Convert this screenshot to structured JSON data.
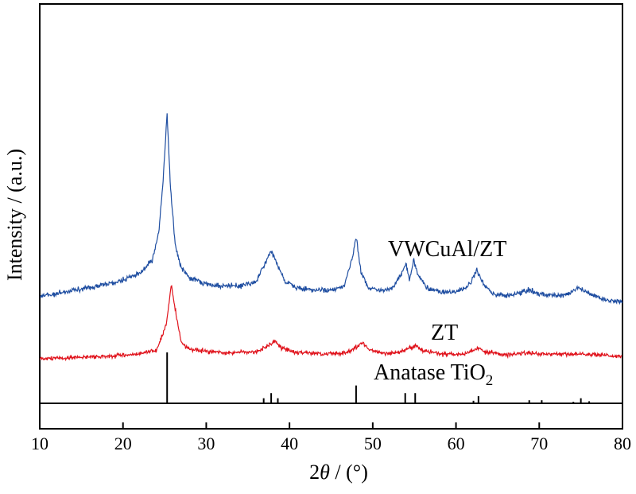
{
  "chart_data": {
    "type": "line",
    "xlabel_prefix": "2",
    "xlabel_symbol": "θ",
    "xlabel_suffix": " / (°)",
    "ylabel": "Intensity / (a.u.)",
    "xlim": [
      10,
      80
    ],
    "x_ticks": [
      "10",
      "20",
      "30",
      "40",
      "50",
      "60",
      "70",
      "80"
    ],
    "y_ticks": "none",
    "grid": false,
    "series": [
      {
        "name": "VWCuAl/ZT",
        "color": "#1f4ea1",
        "points": [
          [
            10,
            0.08
          ],
          [
            12,
            0.09
          ],
          [
            14,
            0.11
          ],
          [
            16,
            0.12
          ],
          [
            18,
            0.14
          ],
          [
            20,
            0.16
          ],
          [
            22,
            0.19
          ],
          [
            23.5,
            0.26
          ],
          [
            24.3,
            0.4
          ],
          [
            24.8,
            0.65
          ],
          [
            25.3,
            1.0
          ],
          [
            25.7,
            0.62
          ],
          [
            26.3,
            0.33
          ],
          [
            27,
            0.22
          ],
          [
            28,
            0.17
          ],
          [
            30,
            0.14
          ],
          [
            32,
            0.13
          ],
          [
            34,
            0.13
          ],
          [
            36,
            0.15
          ],
          [
            37,
            0.24
          ],
          [
            37.8,
            0.31
          ],
          [
            38.5,
            0.24
          ],
          [
            39.5,
            0.15
          ],
          [
            41,
            0.12
          ],
          [
            43,
            0.11
          ],
          [
            45,
            0.11
          ],
          [
            46.5,
            0.13
          ],
          [
            47.5,
            0.26
          ],
          [
            48.0,
            0.38
          ],
          [
            48.6,
            0.2
          ],
          [
            49.5,
            0.12
          ],
          [
            51,
            0.11
          ],
          [
            52.5,
            0.12
          ],
          [
            53.5,
            0.2
          ],
          [
            54.0,
            0.24
          ],
          [
            54.4,
            0.16
          ],
          [
            54.9,
            0.26
          ],
          [
            55.5,
            0.18
          ],
          [
            56.5,
            0.12
          ],
          [
            58,
            0.1
          ],
          [
            60,
            0.1
          ],
          [
            61.5,
            0.13
          ],
          [
            62.5,
            0.21
          ],
          [
            63.3,
            0.14
          ],
          [
            64.5,
            0.09
          ],
          [
            66,
            0.08
          ],
          [
            67.5,
            0.09
          ],
          [
            68.8,
            0.11
          ],
          [
            70,
            0.09
          ],
          [
            72,
            0.08
          ],
          [
            73.5,
            0.09
          ],
          [
            74.8,
            0.12
          ],
          [
            76,
            0.09
          ],
          [
            78,
            0.06
          ],
          [
            80,
            0.05
          ]
        ],
        "label_anchor": [
          49.5,
          0.42
        ]
      },
      {
        "name": "ZT",
        "color": "#e0121b",
        "points": [
          [
            10,
            0.0
          ],
          [
            14,
            0.01
          ],
          [
            18,
            0.02
          ],
          [
            22,
            0.04
          ],
          [
            24,
            0.07
          ],
          [
            25.2,
            0.28
          ],
          [
            25.8,
            0.63
          ],
          [
            26.3,
            0.4
          ],
          [
            27,
            0.14
          ],
          [
            28,
            0.08
          ],
          [
            30,
            0.06
          ],
          [
            33,
            0.05
          ],
          [
            36,
            0.06
          ],
          [
            37.5,
            0.11
          ],
          [
            38.2,
            0.14
          ],
          [
            39,
            0.09
          ],
          [
            41,
            0.05
          ],
          [
            44,
            0.04
          ],
          [
            47,
            0.05
          ],
          [
            48.3,
            0.11
          ],
          [
            48.8,
            0.14
          ],
          [
            49.5,
            0.08
          ],
          [
            51,
            0.05
          ],
          [
            53,
            0.05
          ],
          [
            54.3,
            0.09
          ],
          [
            55.3,
            0.11
          ],
          [
            56,
            0.07
          ],
          [
            58,
            0.04
          ],
          [
            61,
            0.04
          ],
          [
            62.7,
            0.09
          ],
          [
            63.5,
            0.06
          ],
          [
            66,
            0.03
          ],
          [
            68.8,
            0.05
          ],
          [
            70,
            0.04
          ],
          [
            75,
            0.04
          ],
          [
            80,
            0.02
          ]
        ],
        "label_anchor": [
          54.5,
          0.13
        ]
      },
      {
        "name": "Anatase TiO2",
        "name_main": "Anatase TiO",
        "name_sub": "2",
        "color": "#000000",
        "type": "reference_sticks",
        "sticks": [
          [
            25.3,
            100
          ],
          [
            36.9,
            10
          ],
          [
            37.8,
            20
          ],
          [
            38.6,
            10
          ],
          [
            48.0,
            35
          ],
          [
            53.9,
            20
          ],
          [
            55.1,
            20
          ],
          [
            62.1,
            5
          ],
          [
            62.7,
            14
          ],
          [
            68.8,
            6
          ],
          [
            70.3,
            6
          ],
          [
            74.1,
            3
          ],
          [
            75.0,
            10
          ],
          [
            76.0,
            4
          ]
        ],
        "label_anchor": [
          52.5,
          0.0
        ]
      }
    ]
  }
}
